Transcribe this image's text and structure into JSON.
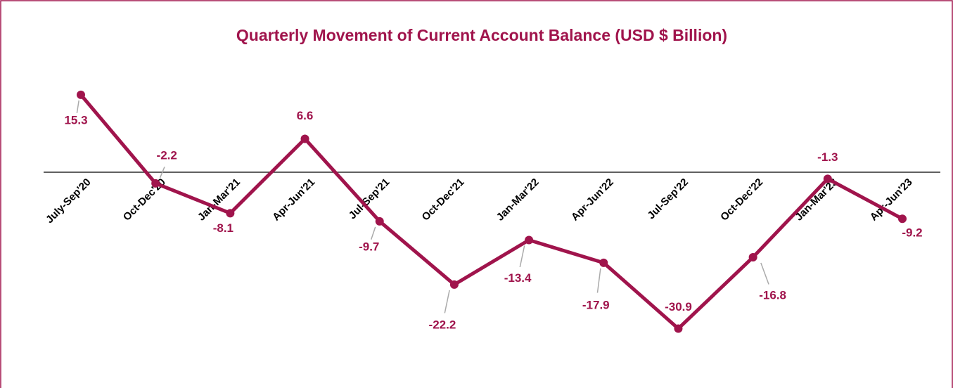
{
  "chart_data": {
    "type": "line",
    "title": "Quarterly Movement of Current Account Balance (USD $ Billion)",
    "categories": [
      "July-Sep'20",
      "Oct-Dec'20",
      "Jan-Mar'21",
      "Apr-Jun'21",
      "Jul-Sep'21",
      "Oct-Dec'21",
      "Jan-Mar'22",
      "Apr-Jun'22",
      "Jul-Sep'22",
      "Oct-Dec'22",
      "Jan-Mar'23",
      "Apr-Jun'23"
    ],
    "values": [
      15.3,
      -2.2,
      -8.1,
      6.6,
      -9.7,
      -22.2,
      -13.4,
      -17.9,
      -30.9,
      -16.8,
      -1.3,
      -9.2
    ],
    "color": "#a0144c",
    "ylim": [
      -40,
      20
    ]
  }
}
